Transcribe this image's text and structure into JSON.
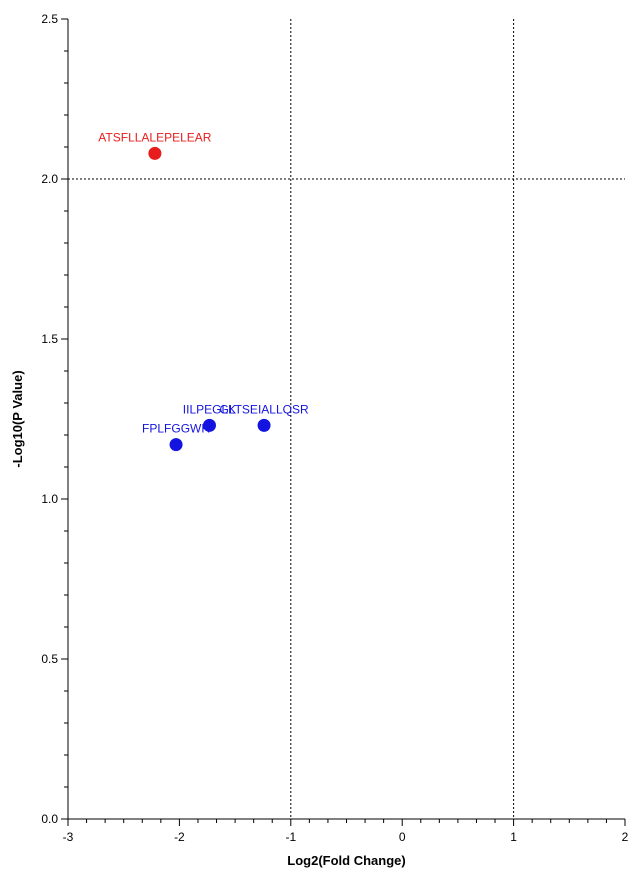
{
  "chart_data": {
    "type": "scatter",
    "title": "",
    "xlabel": "Log2(Fold Change)",
    "ylabel": "-Log10(P Value)",
    "xlim": [
      -3,
      2
    ],
    "ylim": [
      0,
      2.5
    ],
    "x_ticks": [
      -3,
      -2,
      -1,
      0,
      1,
      2
    ],
    "y_ticks": [
      0.0,
      0.5,
      1.0,
      1.5,
      2.0,
      2.5
    ],
    "x_tick_labels": [
      "-3",
      "-2",
      "-1",
      "0",
      "1",
      "2"
    ],
    "y_tick_labels": [
      "0.0",
      "0.5",
      "1.0",
      "1.5",
      "2.0",
      "2.5"
    ],
    "threshold_lines": {
      "x": [
        -1,
        1
      ],
      "y": [
        2.0
      ]
    },
    "grid": false,
    "points": [
      {
        "label": "ATSFLLALEPELEAR",
        "x": -2.22,
        "y": 2.08,
        "color": "#e81c1c"
      },
      {
        "label": "IILPEGLK",
        "x": -1.73,
        "y": 1.23,
        "color": "#1414e0"
      },
      {
        "label": "GLTSEIALLQSR",
        "x": -1.24,
        "y": 1.23,
        "color": "#1414e0"
      },
      {
        "label": "FPLFGGWR",
        "x": -2.03,
        "y": 1.17,
        "color": "#1414e0"
      }
    ]
  }
}
